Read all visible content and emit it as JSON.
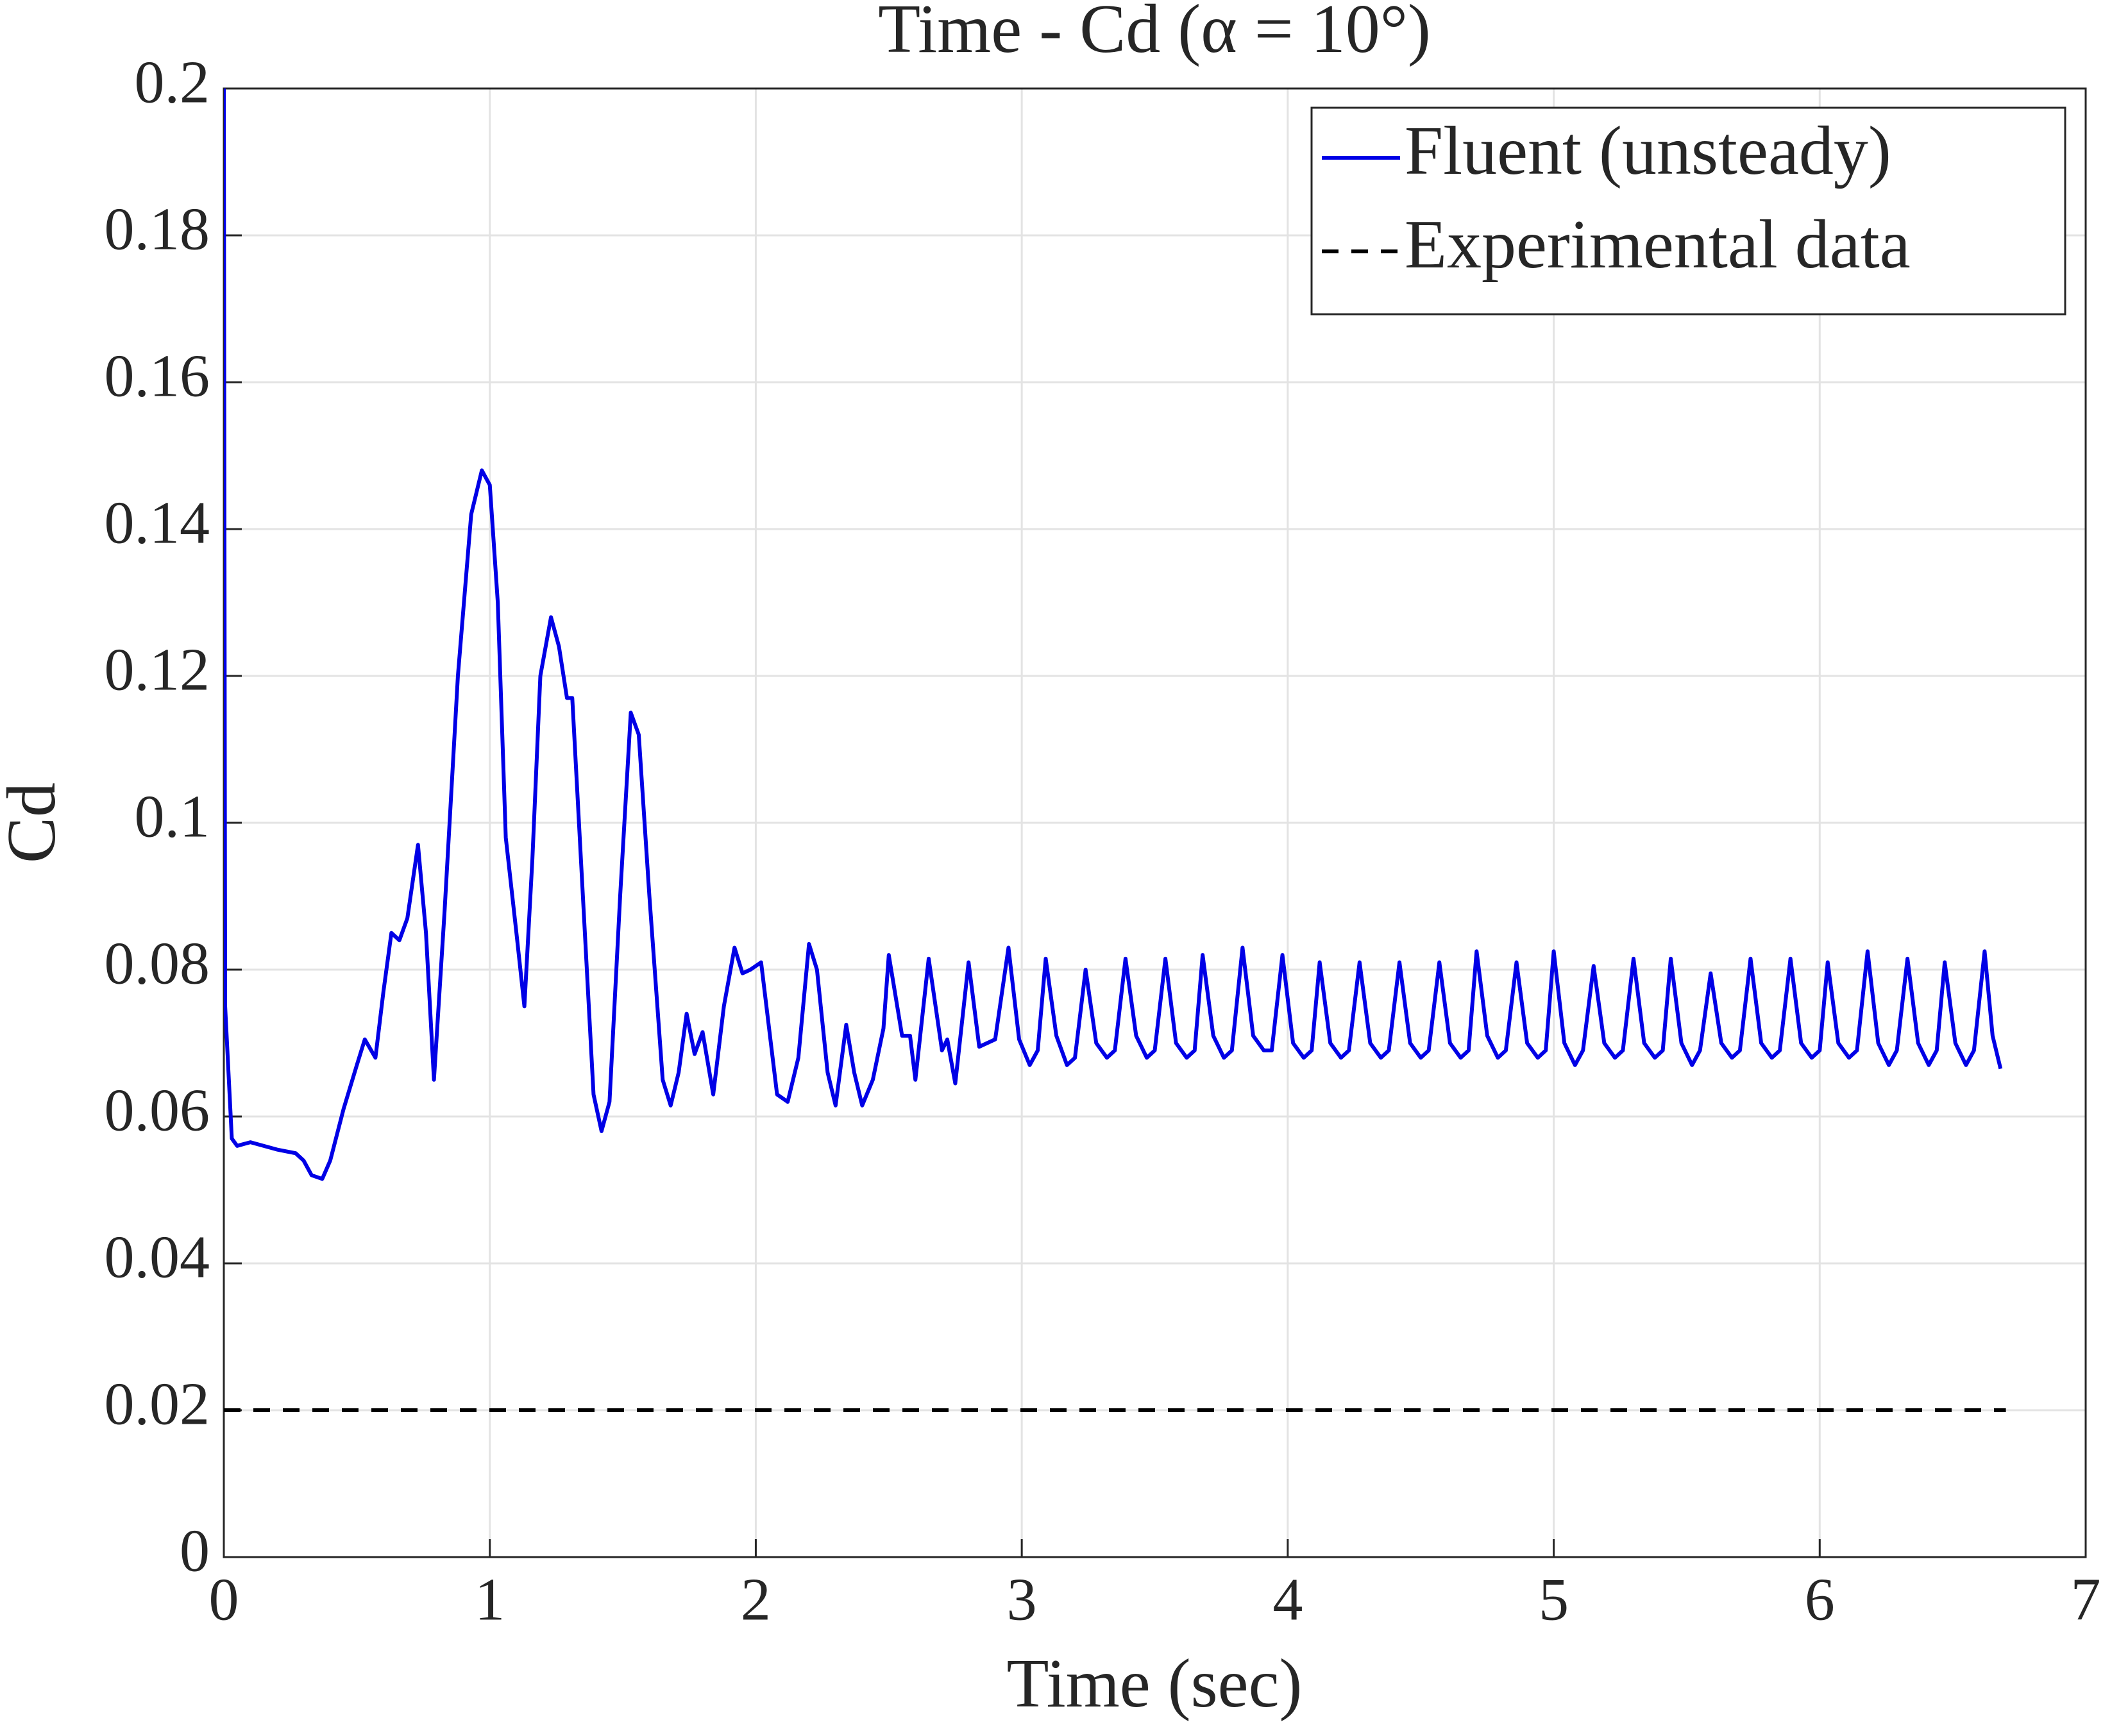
{
  "chart_data": {
    "type": "line",
    "title": "Time - Cd (α = 10°)",
    "xlabel": "Time (sec)",
    "ylabel": "Cd",
    "xlim": [
      0,
      7
    ],
    "xticks": [
      0,
      1,
      2,
      3,
      4,
      5,
      6,
      7
    ],
    "ylim": [
      0,
      0.2
    ],
    "yticks": [
      0,
      0.02,
      0.04,
      0.06,
      0.08,
      0.1,
      0.12,
      0.14,
      0.16,
      0.18,
      0.2
    ],
    "grid": true,
    "legend": "upper right",
    "series": [
      {
        "name": "Fluent (unsteady)",
        "color": "#0000e6",
        "linestyle": "solid",
        "x": [
          0,
          0.005,
          0.03,
          0.05,
          0.1,
          0.2,
          0.27,
          0.3,
          0.33,
          0.37,
          0.4,
          0.45,
          0.5,
          0.53,
          0.57,
          0.6,
          0.63,
          0.66,
          0.69,
          0.73,
          0.76,
          0.79,
          0.83,
          0.88,
          0.93,
          0.97,
          1.0,
          1.03,
          1.06,
          1.1,
          1.13,
          1.16,
          1.19,
          1.23,
          1.26,
          1.29,
          1.31,
          1.35,
          1.39,
          1.42,
          1.45,
          1.49,
          1.53,
          1.56,
          1.6,
          1.65,
          1.68,
          1.71,
          1.74,
          1.77,
          1.8,
          1.84,
          1.88,
          1.92,
          1.95,
          1.98,
          2.02,
          2.05,
          2.08,
          2.12,
          2.16,
          2.2,
          2.23,
          2.27,
          2.3,
          2.34,
          2.37,
          2.4,
          2.44,
          2.48,
          2.5,
          2.55,
          2.58,
          2.6,
          2.65,
          2.7,
          2.72,
          2.75,
          2.8,
          2.84,
          2.87,
          2.9,
          2.95,
          2.99,
          3.03,
          3.06,
          3.09,
          3.13,
          3.17,
          3.2,
          3.24,
          3.28,
          3.32,
          3.35,
          3.39,
          3.43,
          3.47,
          3.5,
          3.54,
          3.58,
          3.62,
          3.65,
          3.68,
          3.72,
          3.76,
          3.79,
          3.83,
          3.87,
          3.91,
          3.94,
          3.98,
          4.02,
          4.06,
          4.09,
          4.12,
          4.16,
          4.2,
          4.23,
          4.27,
          4.31,
          4.35,
          4.38,
          4.42,
          4.46,
          4.5,
          4.53,
          4.57,
          4.61,
          4.65,
          4.68,
          4.71,
          4.75,
          4.79,
          4.82,
          4.86,
          4.9,
          4.94,
          4.97,
          5.0,
          5.04,
          5.08,
          5.11,
          5.15,
          5.19,
          5.23,
          5.26,
          5.3,
          5.34,
          5.38,
          5.41,
          5.44,
          5.48,
          5.52,
          5.55,
          5.59,
          5.63,
          5.67,
          5.7,
          5.74,
          5.78,
          5.82,
          5.85,
          5.89,
          5.93,
          5.97,
          6.0,
          6.03,
          6.07,
          6.11,
          6.14,
          6.18,
          6.22,
          6.26,
          6.29,
          6.33,
          6.37,
          6.41,
          6.44,
          6.47,
          6.51,
          6.55,
          6.58,
          6.62,
          6.65,
          6.68
        ],
        "values": [
          0.2,
          0.075,
          0.057,
          0.056,
          0.0565,
          0.0555,
          0.055,
          0.054,
          0.052,
          0.0515,
          0.054,
          0.061,
          0.067,
          0.0705,
          0.068,
          0.077,
          0.085,
          0.084,
          0.087,
          0.097,
          0.085,
          0.065,
          0.088,
          0.12,
          0.142,
          0.148,
          0.146,
          0.13,
          0.098,
          0.085,
          0.075,
          0.095,
          0.12,
          0.128,
          0.124,
          0.117,
          0.117,
          0.09,
          0.063,
          0.058,
          0.062,
          0.09,
          0.115,
          0.112,
          0.09,
          0.065,
          0.0615,
          0.066,
          0.074,
          0.0685,
          0.0715,
          0.063,
          0.075,
          0.083,
          0.0795,
          0.08,
          0.081,
          0.072,
          0.063,
          0.062,
          0.068,
          0.0835,
          0.08,
          0.066,
          0.0615,
          0.0725,
          0.066,
          0.0615,
          0.065,
          0.072,
          0.082,
          0.071,
          0.071,
          0.065,
          0.0815,
          0.069,
          0.0705,
          0.0645,
          0.081,
          0.0695,
          0.07,
          0.0705,
          0.083,
          0.0705,
          0.067,
          0.069,
          0.0815,
          0.071,
          0.067,
          0.068,
          0.08,
          0.07,
          0.068,
          0.069,
          0.0815,
          0.071,
          0.068,
          0.069,
          0.0815,
          0.07,
          0.068,
          0.069,
          0.082,
          0.071,
          0.068,
          0.069,
          0.083,
          0.071,
          0.069,
          0.069,
          0.082,
          0.07,
          0.068,
          0.069,
          0.081,
          0.07,
          0.068,
          0.069,
          0.081,
          0.07,
          0.068,
          0.069,
          0.081,
          0.07,
          0.068,
          0.069,
          0.081,
          0.07,
          0.068,
          0.069,
          0.0825,
          0.071,
          0.068,
          0.069,
          0.081,
          0.07,
          0.068,
          0.069,
          0.0825,
          0.07,
          0.067,
          0.069,
          0.0805,
          0.07,
          0.068,
          0.069,
          0.0815,
          0.07,
          0.068,
          0.069,
          0.0815,
          0.07,
          0.067,
          0.069,
          0.0795,
          0.07,
          0.068,
          0.069,
          0.0815,
          0.07,
          0.068,
          0.069,
          0.0815,
          0.07,
          0.068,
          0.069,
          0.081,
          0.07,
          0.068,
          0.069,
          0.0825,
          0.07,
          0.067,
          0.069,
          0.0815,
          0.07,
          0.067,
          0.069,
          0.081,
          0.07,
          0.067,
          0.069,
          0.0825,
          0.071,
          0.0665
        ]
      },
      {
        "name": "Experimental data",
        "color": "#000000",
        "linestyle": "dashed",
        "x": [
          0,
          6.7
        ],
        "values": [
          0.02,
          0.02
        ]
      }
    ]
  }
}
